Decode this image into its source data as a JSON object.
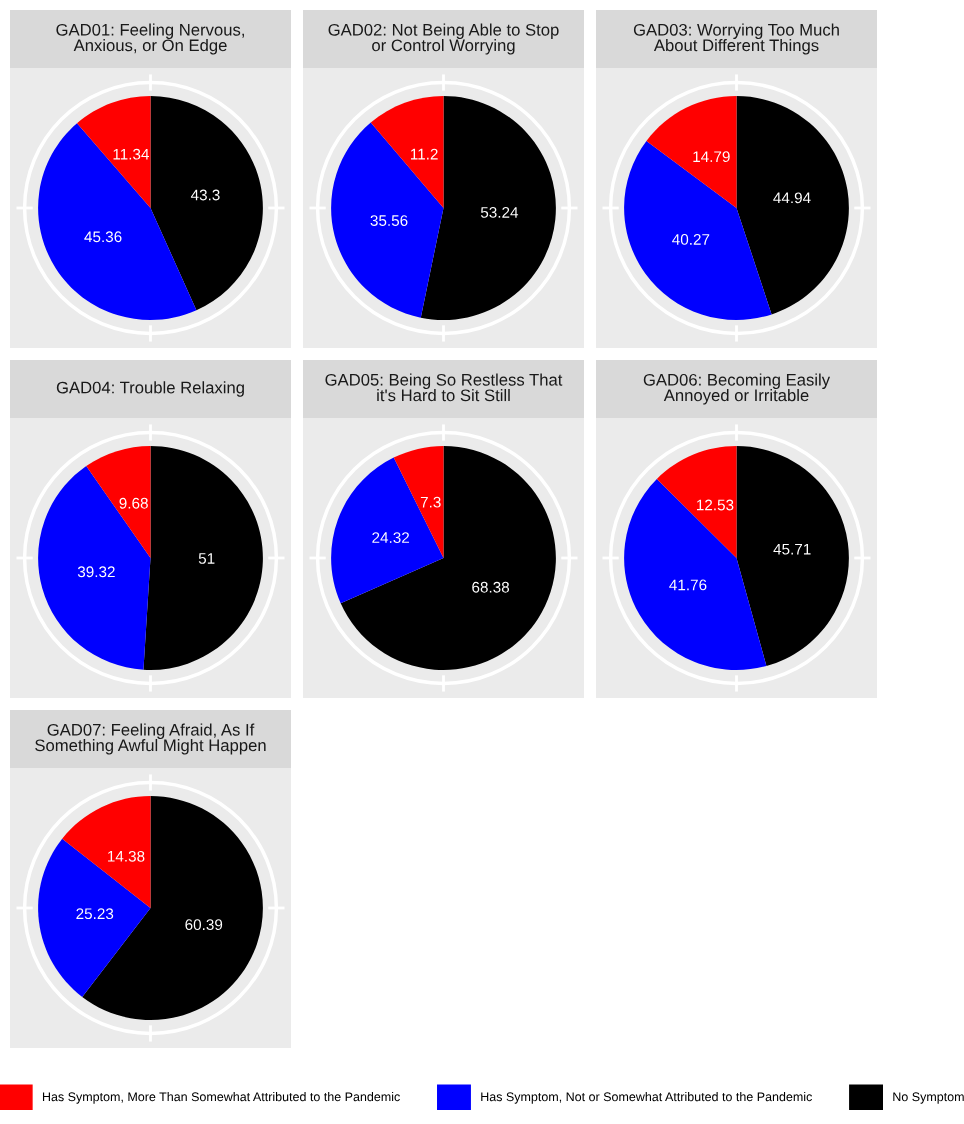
{
  "chart_data": [
    {
      "type": "pie",
      "title": "GAD01: Feeling Nervous,\nAnxious, or On Edge",
      "categories": [
        "Has Symptom, More Than Somewhat Attributed to the Pandemic",
        "Has Symptom, Not or Somewhat Attributed to the Pandemic",
        "No Symptom"
      ],
      "values": [
        11.34,
        45.36,
        43.3
      ],
      "colors": [
        "#ff0000",
        "#0000ff",
        "#000000"
      ],
      "data_labels": true,
      "legend": "bottom"
    },
    {
      "type": "pie",
      "title": "GAD02: Not Being Able to Stop\nor Control Worrying",
      "values": [
        11.2,
        35.56,
        53.24
      ],
      "colors": [
        "#ff0000",
        "#0000ff",
        "#000000"
      ],
      "data_labels": true
    },
    {
      "type": "pie",
      "title": "GAD03: Worrying Too Much\nAbout Different Things",
      "values": [
        14.79,
        40.27,
        44.94
      ],
      "colors": [
        "#ff0000",
        "#0000ff",
        "#000000"
      ],
      "data_labels": true
    },
    {
      "type": "pie",
      "title": "GAD04: Trouble Relaxing",
      "values": [
        9.68,
        39.32,
        51
      ],
      "colors": [
        "#ff0000",
        "#0000ff",
        "#000000"
      ],
      "data_labels": true
    },
    {
      "type": "pie",
      "title": "GAD05: Being So Restless That\nit's Hard to Sit Still",
      "values": [
        7.3,
        24.32,
        68.38
      ],
      "colors": [
        "#ff0000",
        "#0000ff",
        "#000000"
      ],
      "data_labels": true
    },
    {
      "type": "pie",
      "title": "GAD06: Becoming Easily\nAnnoyed or Irritable",
      "values": [
        12.53,
        41.76,
        45.71
      ],
      "colors": [
        "#ff0000",
        "#0000ff",
        "#000000"
      ],
      "data_labels": true
    },
    {
      "type": "pie",
      "title": "GAD07: Feeling Afraid, As If\nSomething Awful Might Happen",
      "values": [
        14.38,
        25.23,
        60.39
      ],
      "colors": [
        "#ff0000",
        "#0000ff",
        "#000000"
      ],
      "data_labels": true
    }
  ]
}
